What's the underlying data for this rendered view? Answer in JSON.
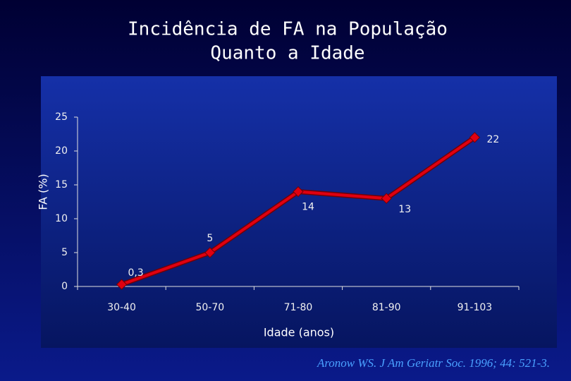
{
  "chart_data": {
    "type": "line",
    "title": [
      "Incidência de FA na População",
      "Quanto a Idade"
    ],
    "x_label": "Idade (anos)",
    "y_label": "FA (%)",
    "categories": [
      "30-40",
      "50-70",
      "71-80",
      "81-90",
      "91-103"
    ],
    "values": [
      0.3,
      5,
      14,
      13,
      22
    ],
    "value_labels": [
      "0,3",
      "5",
      "14",
      "13",
      "22"
    ],
    "color": "#e00010",
    "ylim": [
      0,
      25
    ],
    "yticks": [
      0,
      5,
      10,
      15,
      20,
      25
    ],
    "source": "Aronow WS. J Am Geriatr Soc. 1996; 44: 521-3."
  }
}
